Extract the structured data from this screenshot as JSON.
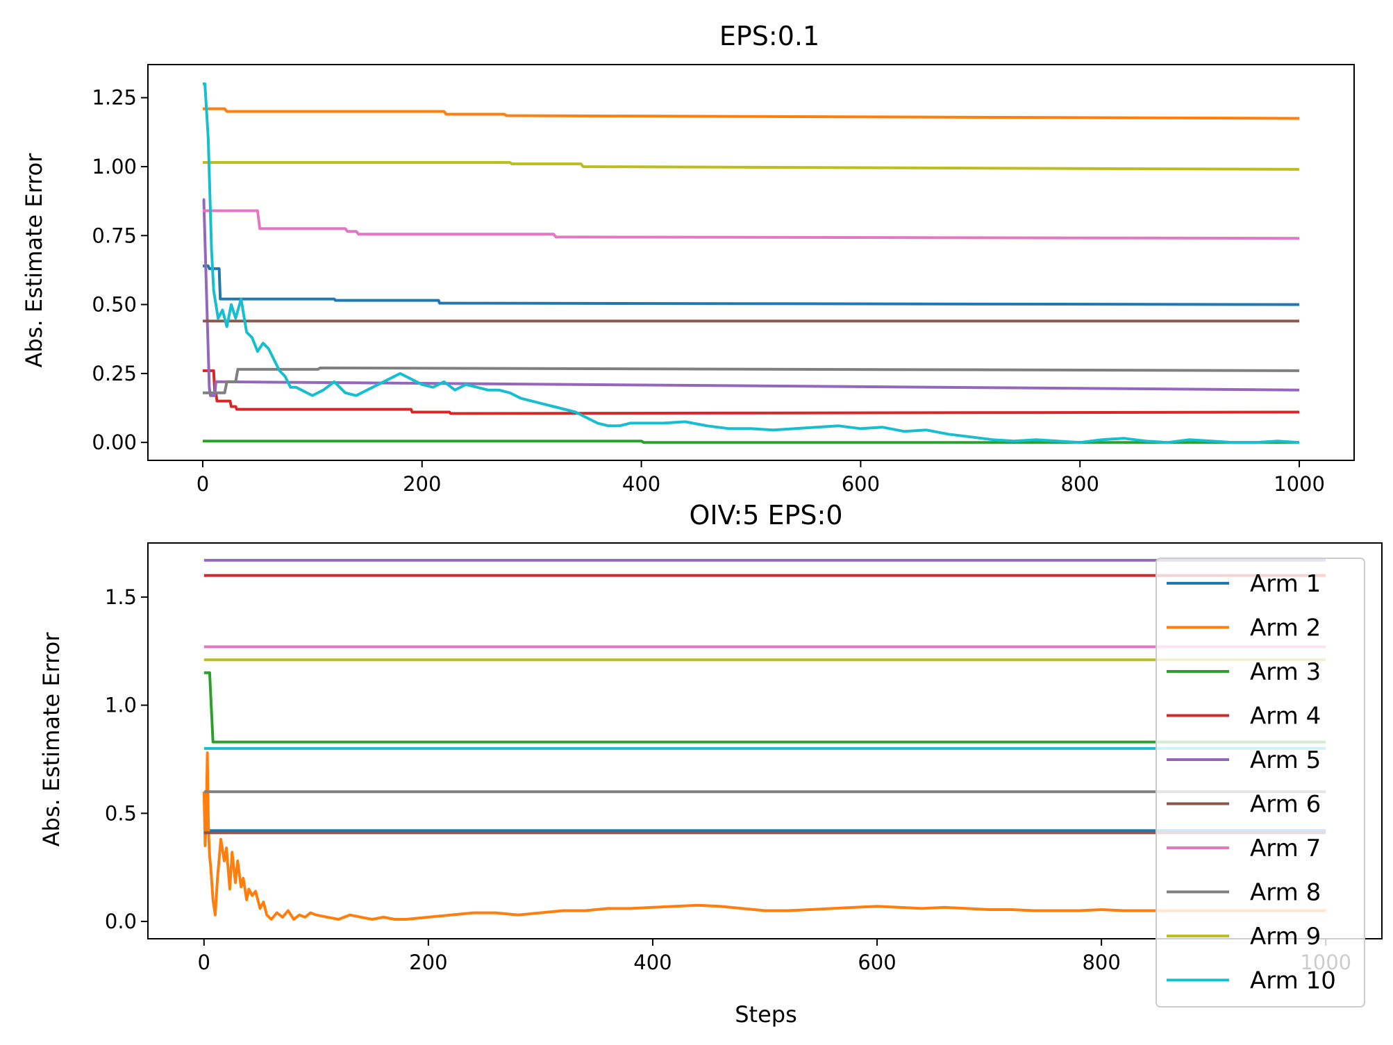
{
  "chart_data": [
    {
      "type": "line",
      "title": "EPS:0.1",
      "xlabel": "",
      "ylabel": "Abs. Estimate Error",
      "xlim": [
        -50,
        1050
      ],
      "ylim": [
        -0.065,
        1.37
      ],
      "xticks": [
        0,
        200,
        400,
        600,
        800,
        1000
      ],
      "yticks": [
        0.0,
        0.25,
        0.5,
        0.75,
        1.0,
        1.25
      ],
      "ytick_labels": [
        "0.00",
        "0.25",
        "0.50",
        "0.75",
        "1.00",
        "1.25"
      ],
      "grid": false,
      "series": [
        {
          "name": "Arm 1",
          "color": "#1f77b4",
          "x": [
            0,
            5,
            6,
            15,
            16,
            120,
            121,
            215,
            216,
            1000
          ],
          "y": [
            0.64,
            0.64,
            0.63,
            0.63,
            0.52,
            0.52,
            0.515,
            0.515,
            0.505,
            0.5
          ]
        },
        {
          "name": "Arm 2",
          "color": "#ff7f0e",
          "x": [
            0,
            20,
            22,
            220,
            222,
            275,
            277,
            1000
          ],
          "y": [
            1.21,
            1.21,
            1.2,
            1.2,
            1.19,
            1.19,
            1.185,
            1.175
          ]
        },
        {
          "name": "Arm 3",
          "color": "#2ca02c",
          "x": [
            0,
            400,
            402,
            1000
          ],
          "y": [
            0.005,
            0.005,
            0.0,
            0.0
          ]
        },
        {
          "name": "Arm 4",
          "color": "#d62728",
          "x": [
            0,
            10,
            11,
            12,
            13,
            25,
            26,
            30,
            31,
            190,
            191,
            225,
            226,
            1000
          ],
          "y": [
            0.26,
            0.26,
            0.18,
            0.18,
            0.15,
            0.15,
            0.13,
            0.13,
            0.12,
            0.12,
            0.11,
            0.11,
            0.105,
            0.11
          ]
        },
        {
          "name": "Arm 5",
          "color": "#9467bd",
          "x": [
            0,
            1,
            3,
            6,
            7,
            11,
            12,
            1000
          ],
          "y": [
            0.88,
            0.88,
            0.6,
            0.2,
            0.17,
            0.17,
            0.22,
            0.19
          ]
        },
        {
          "name": "Arm 6",
          "color": "#8c564b",
          "x": [
            0,
            1000
          ],
          "y": [
            0.44,
            0.44
          ]
        },
        {
          "name": "Arm 7",
          "color": "#e377c2",
          "x": [
            0,
            50,
            52,
            130,
            132,
            140,
            142,
            320,
            322,
            1000
          ],
          "y": [
            0.84,
            0.84,
            0.775,
            0.775,
            0.765,
            0.765,
            0.755,
            0.755,
            0.745,
            0.74
          ]
        },
        {
          "name": "Arm 8",
          "color": "#7f7f7f",
          "x": [
            0,
            20,
            22,
            30,
            32,
            105,
            107,
            1000
          ],
          "y": [
            0.18,
            0.18,
            0.22,
            0.22,
            0.265,
            0.265,
            0.27,
            0.26
          ]
        },
        {
          "name": "Arm 9",
          "color": "#bcbd22",
          "x": [
            0,
            280,
            282,
            345,
            347,
            1000
          ],
          "y": [
            1.015,
            1.015,
            1.01,
            1.01,
            1.0,
            0.99
          ]
        },
        {
          "name": "Arm 10",
          "color": "#17becf",
          "x": [
            0,
            2,
            5,
            8,
            10,
            14,
            18,
            22,
            26,
            30,
            35,
            40,
            45,
            50,
            55,
            60,
            65,
            70,
            75,
            80,
            85,
            90,
            95,
            100,
            110,
            120,
            130,
            140,
            150,
            160,
            170,
            180,
            190,
            200,
            210,
            220,
            230,
            240,
            250,
            260,
            270,
            280,
            290,
            300,
            310,
            320,
            330,
            340,
            350,
            360,
            370,
            380,
            390,
            400,
            420,
            440,
            460,
            480,
            500,
            520,
            540,
            560,
            580,
            600,
            620,
            640,
            660,
            680,
            700,
            720,
            740,
            760,
            780,
            800,
            820,
            840,
            860,
            880,
            900,
            920,
            940,
            960,
            980,
            1000
          ],
          "y": [
            1.3,
            1.3,
            1.1,
            0.7,
            0.55,
            0.45,
            0.48,
            0.42,
            0.5,
            0.45,
            0.52,
            0.4,
            0.38,
            0.33,
            0.36,
            0.34,
            0.3,
            0.26,
            0.24,
            0.2,
            0.2,
            0.19,
            0.18,
            0.17,
            0.19,
            0.22,
            0.18,
            0.17,
            0.19,
            0.21,
            0.23,
            0.25,
            0.23,
            0.21,
            0.2,
            0.22,
            0.19,
            0.21,
            0.2,
            0.19,
            0.19,
            0.18,
            0.16,
            0.15,
            0.14,
            0.13,
            0.12,
            0.11,
            0.09,
            0.07,
            0.06,
            0.06,
            0.07,
            0.07,
            0.07,
            0.075,
            0.06,
            0.05,
            0.05,
            0.045,
            0.05,
            0.055,
            0.06,
            0.05,
            0.055,
            0.04,
            0.045,
            0.03,
            0.02,
            0.01,
            0.005,
            0.01,
            0.005,
            0.0,
            0.01,
            0.015,
            0.005,
            0.0,
            0.01,
            0.005,
            0.0,
            0.0,
            0.005,
            0.0
          ]
        }
      ]
    },
    {
      "type": "line",
      "title": "OIV:5 EPS:0",
      "xlabel": "Steps",
      "ylabel": "Abs. Estimate Error",
      "xlim": [
        -50,
        1050
      ],
      "ylim": [
        -0.08,
        1.75
      ],
      "xticks": [
        0,
        200,
        400,
        600,
        800,
        1000
      ],
      "yticks": [
        0.0,
        0.5,
        1.0,
        1.5
      ],
      "ytick_labels": [
        "0.0",
        "0.5",
        "1.0",
        "1.5"
      ],
      "grid": false,
      "legend_position": "right",
      "series": [
        {
          "name": "Arm 1",
          "color": "#1f77b4",
          "x": [
            0,
            1000
          ],
          "y": [
            0.42,
            0.42
          ]
        },
        {
          "name": "Arm 2",
          "color": "#ff7f0e",
          "x": [
            0,
            1,
            2,
            3,
            4,
            5,
            6,
            8,
            10,
            12,
            15,
            18,
            20,
            23,
            25,
            28,
            30,
            33,
            35,
            38,
            40,
            43,
            46,
            50,
            53,
            56,
            60,
            65,
            70,
            75,
            80,
            85,
            90,
            95,
            100,
            110,
            120,
            130,
            140,
            150,
            160,
            170,
            180,
            200,
            220,
            240,
            260,
            280,
            300,
            320,
            340,
            360,
            380,
            400,
            420,
            440,
            460,
            480,
            500,
            520,
            540,
            560,
            580,
            600,
            620,
            640,
            660,
            680,
            700,
            720,
            740,
            760,
            780,
            800,
            820,
            840,
            860,
            880,
            900,
            920,
            940,
            960,
            980,
            1000
          ],
          "y": [
            0.6,
            0.35,
            0.48,
            0.78,
            0.42,
            0.3,
            0.25,
            0.1,
            0.03,
            0.2,
            0.38,
            0.28,
            0.34,
            0.15,
            0.32,
            0.18,
            0.28,
            0.16,
            0.2,
            0.1,
            0.15,
            0.12,
            0.14,
            0.06,
            0.09,
            0.03,
            0.01,
            0.04,
            0.02,
            0.05,
            0.01,
            0.03,
            0.02,
            0.04,
            0.03,
            0.02,
            0.01,
            0.03,
            0.02,
            0.01,
            0.02,
            0.01,
            0.01,
            0.02,
            0.03,
            0.04,
            0.04,
            0.03,
            0.04,
            0.05,
            0.05,
            0.06,
            0.06,
            0.065,
            0.07,
            0.075,
            0.07,
            0.06,
            0.05,
            0.05,
            0.055,
            0.06,
            0.065,
            0.07,
            0.065,
            0.06,
            0.065,
            0.06,
            0.055,
            0.055,
            0.05,
            0.05,
            0.05,
            0.055,
            0.05,
            0.05,
            0.05,
            0.05,
            0.05,
            0.05,
            0.05,
            0.05,
            0.05,
            0.05
          ]
        },
        {
          "name": "Arm 3",
          "color": "#2ca02c",
          "x": [
            0,
            4,
            5,
            8,
            1000
          ],
          "y": [
            1.15,
            1.15,
            1.15,
            0.83,
            0.83
          ]
        },
        {
          "name": "Arm 4",
          "color": "#d62728",
          "x": [
            0,
            1000
          ],
          "y": [
            1.6,
            1.6
          ]
        },
        {
          "name": "Arm 5",
          "color": "#9467bd",
          "x": [
            0,
            1000
          ],
          "y": [
            1.67,
            1.67
          ]
        },
        {
          "name": "Arm 6",
          "color": "#8c564b",
          "x": [
            0,
            1000
          ],
          "y": [
            0.41,
            0.41
          ]
        },
        {
          "name": "Arm 7",
          "color": "#e377c2",
          "x": [
            0,
            1000
          ],
          "y": [
            1.27,
            1.27
          ]
        },
        {
          "name": "Arm 8",
          "color": "#7f7f7f",
          "x": [
            0,
            1000
          ],
          "y": [
            0.6,
            0.6
          ]
        },
        {
          "name": "Arm 9",
          "color": "#bcbd22",
          "x": [
            0,
            1000
          ],
          "y": [
            1.21,
            1.21
          ]
        },
        {
          "name": "Arm 10",
          "color": "#17becf",
          "x": [
            0,
            1000
          ],
          "y": [
            0.8,
            0.8
          ]
        }
      ]
    }
  ]
}
